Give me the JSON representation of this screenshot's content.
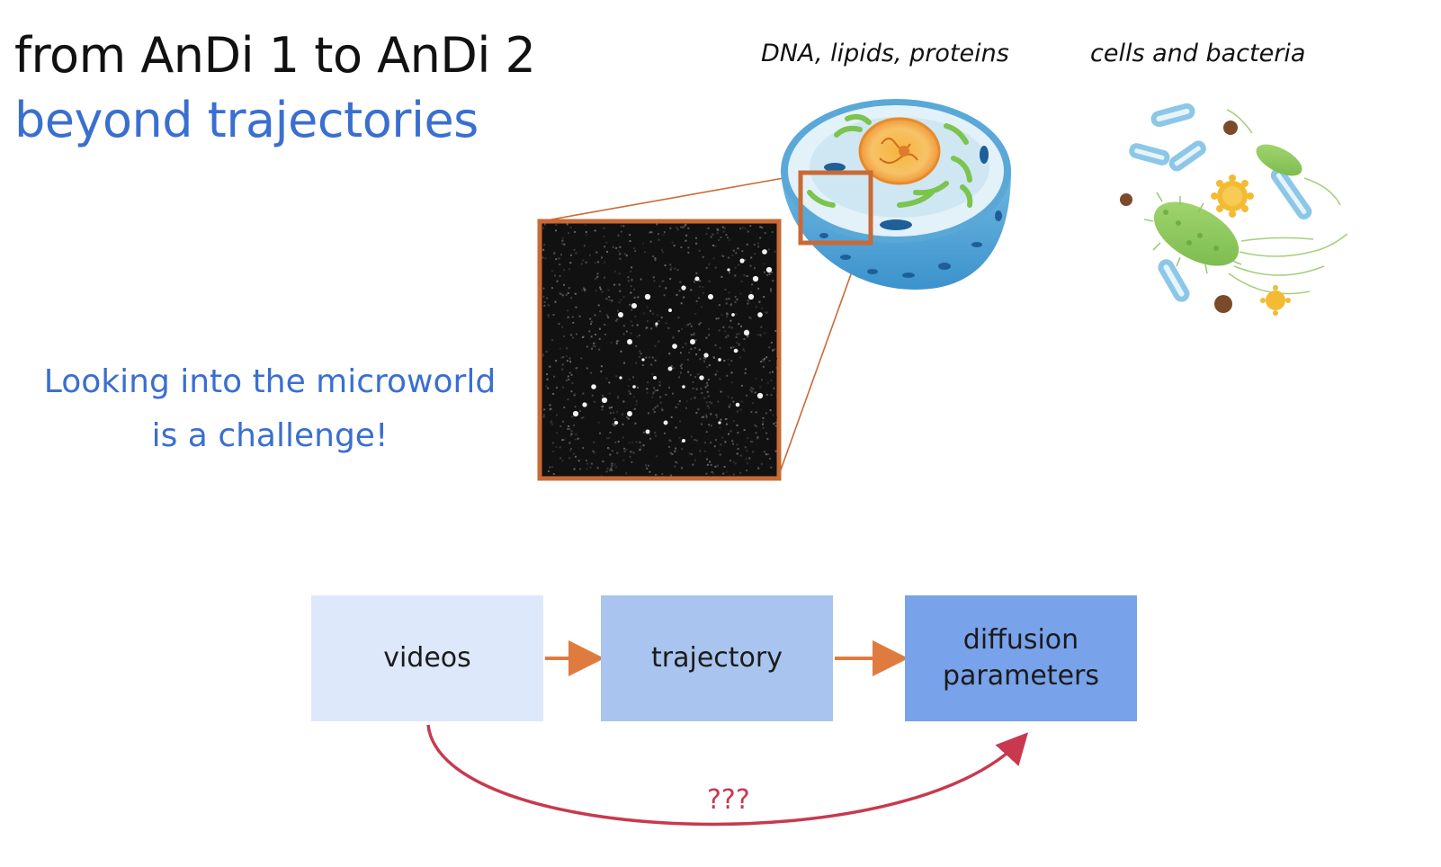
{
  "header": {
    "title": "from AnDi 1 to AnDi 2",
    "subtitle": "beyond trajectories"
  },
  "captions": {
    "dna": "DNA, lipids, proteins",
    "cells": "cells and bacteria"
  },
  "challenge": {
    "line1": "Looking into the microworld",
    "line2": "is a challenge!"
  },
  "pipeline": {
    "steps": [
      {
        "label": "videos",
        "color": "#dde8fb"
      },
      {
        "label": "trajectory",
        "color": "#a9c4ee"
      },
      {
        "label_line1": "diffusion",
        "label_line2": "parameters",
        "color": "#78a2ea"
      }
    ],
    "arrow_color": "#e07b3f",
    "curve_color": "#c8394f",
    "curve_label": "???"
  },
  "colors": {
    "title": "#111111",
    "accent_blue": "#3a6fd0",
    "frame_orange": "#c96a36"
  }
}
